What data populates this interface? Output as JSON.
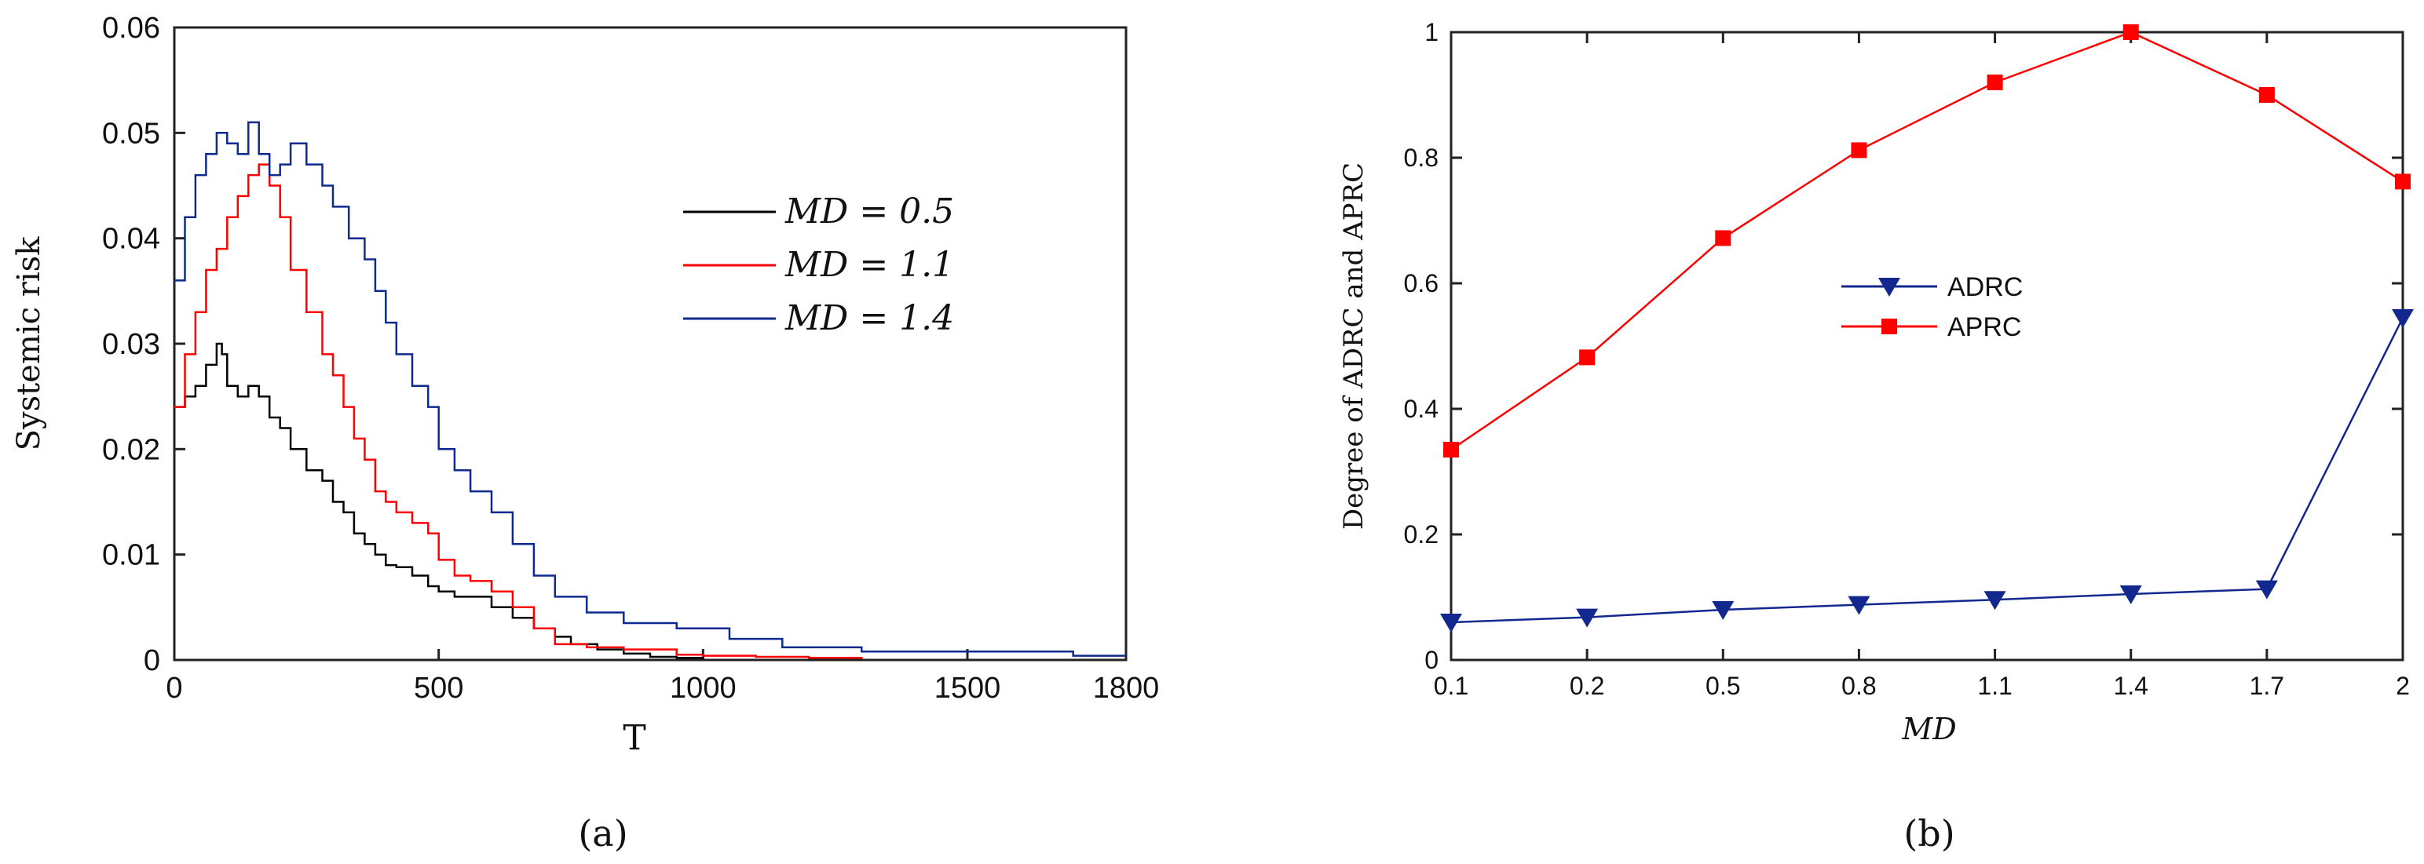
{
  "chart_data": [
    {
      "type": "line",
      "panel_label": "(a)",
      "xlabel": "T",
      "ylabel": "Systemic risk",
      "xlim": [
        0,
        1800
      ],
      "ylim": [
        0,
        0.06
      ],
      "xticks": [
        "0",
        "500",
        "1000",
        "1500",
        "1800"
      ],
      "yticks": [
        "0",
        "0.01",
        "0.02",
        "0.03",
        "0.04",
        "0.05",
        "0.06"
      ],
      "legend_position": "center-right",
      "series": [
        {
          "name": "MD = 0.5",
          "legend_label": "MD = 0.5",
          "color": "#000000",
          "x": [
            0,
            20,
            40,
            60,
            80,
            90,
            100,
            120,
            140,
            160,
            180,
            200,
            220,
            250,
            280,
            300,
            320,
            340,
            360,
            380,
            400,
            420,
            450,
            480,
            500,
            530,
            560,
            600,
            640,
            680,
            720,
            750,
            800,
            850,
            900,
            950,
            1000
          ],
          "y": [
            0.024,
            0.025,
            0.026,
            0.028,
            0.03,
            0.029,
            0.026,
            0.025,
            0.026,
            0.025,
            0.023,
            0.022,
            0.02,
            0.018,
            0.017,
            0.015,
            0.014,
            0.012,
            0.011,
            0.01,
            0.009,
            0.0088,
            0.008,
            0.007,
            0.0065,
            0.006,
            0.006,
            0.005,
            0.004,
            0.003,
            0.0022,
            0.0015,
            0.001,
            0.0006,
            0.0003,
            0.0002,
            0.0001
          ]
        },
        {
          "name": "MD = 1.1",
          "legend_label": "MD = 1.1",
          "color": "#ff0000",
          "x": [
            0,
            20,
            40,
            60,
            80,
            100,
            120,
            140,
            160,
            180,
            200,
            220,
            250,
            280,
            300,
            320,
            340,
            360,
            380,
            400,
            420,
            450,
            480,
            500,
            530,
            560,
            600,
            640,
            680,
            720,
            780,
            850,
            920,
            950,
            1000,
            1100,
            1200,
            1300
          ],
          "y": [
            0.024,
            0.029,
            0.033,
            0.037,
            0.039,
            0.042,
            0.044,
            0.046,
            0.047,
            0.045,
            0.042,
            0.037,
            0.033,
            0.029,
            0.027,
            0.024,
            0.021,
            0.019,
            0.016,
            0.015,
            0.014,
            0.013,
            0.012,
            0.0095,
            0.008,
            0.0075,
            0.0065,
            0.005,
            0.003,
            0.0015,
            0.0012,
            0.001,
            0.001,
            0.0005,
            0.0004,
            0.0003,
            0.0002,
            0.0001
          ]
        },
        {
          "name": "MD = 1.4",
          "legend_label": "MD = 1.4",
          "color": "#0f2a8f",
          "x": [
            0,
            20,
            40,
            60,
            80,
            100,
            120,
            140,
            160,
            180,
            200,
            220,
            250,
            280,
            300,
            330,
            360,
            380,
            400,
            420,
            450,
            480,
            500,
            530,
            560,
            600,
            640,
            680,
            720,
            780,
            850,
            950,
            1050,
            1150,
            1300,
            1500,
            1700,
            1800
          ],
          "y": [
            0.036,
            0.042,
            0.046,
            0.048,
            0.05,
            0.049,
            0.048,
            0.051,
            0.048,
            0.046,
            0.047,
            0.049,
            0.047,
            0.045,
            0.043,
            0.04,
            0.038,
            0.035,
            0.032,
            0.029,
            0.026,
            0.024,
            0.02,
            0.018,
            0.016,
            0.014,
            0.011,
            0.008,
            0.006,
            0.0045,
            0.0035,
            0.003,
            0.002,
            0.0012,
            0.0008,
            0.0008,
            0.0004,
            0.0004
          ]
        }
      ]
    },
    {
      "type": "line",
      "panel_label": "(b)",
      "xlabel": "MD",
      "ylabel": "Degree of ADRC and APRC",
      "categories": [
        "0.1",
        "0.2",
        "0.5",
        "0.8",
        "1.1",
        "1.4",
        "1.7",
        "2"
      ],
      "ylim": [
        0,
        1
      ],
      "yticks": [
        "0",
        "0.2",
        "0.4",
        "0.6",
        "0.8",
        "1"
      ],
      "legend_position": "center",
      "series": [
        {
          "name": "ADRC",
          "color": "#13288f",
          "marker": "triangle-down",
          "values": [
            0.06,
            0.068,
            0.08,
            0.088,
            0.096,
            0.105,
            0.113,
            0.545
          ]
        },
        {
          "name": "APRC",
          "color": "#ff0000",
          "marker": "square",
          "values": [
            0.335,
            0.482,
            0.672,
            0.812,
            0.92,
            1.0,
            0.9,
            0.762
          ]
        }
      ]
    }
  ]
}
